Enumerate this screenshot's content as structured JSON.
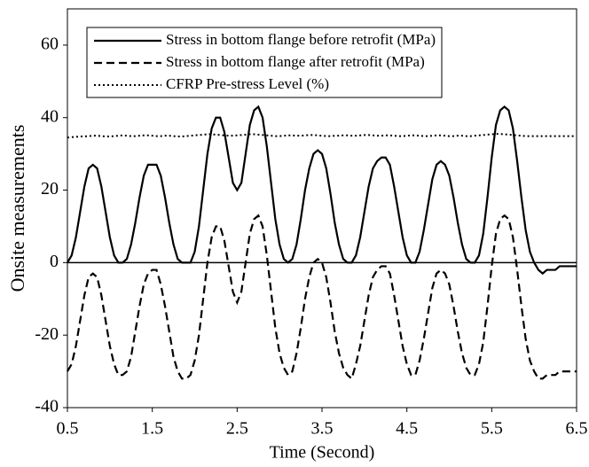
{
  "chart_data": {
    "type": "line",
    "xlabel": "Time (Second)",
    "ylabel": "Onsite measurements",
    "x": [
      0.5,
      0.55,
      0.6,
      0.65,
      0.7,
      0.75,
      0.8,
      0.85,
      0.9,
      0.95,
      1.0,
      1.05,
      1.1,
      1.15,
      1.2,
      1.25,
      1.3,
      1.35,
      1.4,
      1.45,
      1.5,
      1.55,
      1.6,
      1.65,
      1.7,
      1.75,
      1.8,
      1.85,
      1.9,
      1.95,
      2.0,
      2.05,
      2.1,
      2.15,
      2.2,
      2.25,
      2.3,
      2.35,
      2.4,
      2.45,
      2.5,
      2.55,
      2.6,
      2.65,
      2.7,
      2.75,
      2.8,
      2.85,
      2.9,
      2.95,
      3.0,
      3.05,
      3.1,
      3.15,
      3.2,
      3.25,
      3.3,
      3.35,
      3.4,
      3.45,
      3.5,
      3.55,
      3.6,
      3.65,
      3.7,
      3.75,
      3.8,
      3.85,
      3.9,
      3.95,
      4.0,
      4.05,
      4.1,
      4.15,
      4.2,
      4.25,
      4.3,
      4.35,
      4.4,
      4.45,
      4.5,
      4.55,
      4.6,
      4.65,
      4.7,
      4.75,
      4.8,
      4.85,
      4.9,
      4.95,
      5.0,
      5.05,
      5.1,
      5.15,
      5.2,
      5.25,
      5.3,
      5.35,
      5.4,
      5.45,
      5.5,
      5.55,
      5.6,
      5.65,
      5.7,
      5.75,
      5.8,
      5.85,
      5.9,
      5.95,
      6.0,
      6.05,
      6.1,
      6.15,
      6.2,
      6.25,
      6.3,
      6.35,
      6.4,
      6.45,
      6.5
    ],
    "series": [
      {
        "name": "Stress in bottom flange before retrofit (MPa)",
        "color": "#000000",
        "style": "solid",
        "values": [
          0,
          2,
          7,
          14,
          21,
          26,
          27,
          26,
          21,
          14,
          7,
          2,
          0,
          0,
          1,
          5,
          11,
          18,
          24,
          27,
          27,
          27,
          24,
          18,
          11,
          5,
          1,
          0,
          0,
          0,
          3,
          10,
          20,
          30,
          37,
          40,
          40,
          36,
          29,
          22,
          20,
          22,
          30,
          38,
          42,
          43,
          40,
          32,
          22,
          12,
          5,
          1,
          0,
          1,
          5,
          12,
          20,
          26,
          30,
          31,
          30,
          26,
          19,
          11,
          5,
          1,
          0,
          0,
          2,
          7,
          14,
          21,
          26,
          28,
          29,
          29,
          27,
          21,
          14,
          7,
          2,
          0,
          0,
          3,
          9,
          16,
          23,
          27,
          28,
          27,
          24,
          18,
          11,
          5,
          1,
          0,
          0,
          2,
          8,
          18,
          29,
          38,
          42,
          43,
          42,
          37,
          28,
          18,
          9,
          3,
          0,
          -2,
          -3,
          -2,
          -2,
          -2,
          -1,
          -1,
          -1,
          -1,
          -1
        ]
      },
      {
        "name": "Stress in bottom flange after retrofit (MPa)",
        "color": "#000000",
        "style": "dashed",
        "values": [
          -30,
          -28,
          -23,
          -16,
          -9,
          -4,
          -3,
          -4,
          -9,
          -16,
          -23,
          -28,
          -31,
          -31,
          -30,
          -26,
          -19,
          -12,
          -6,
          -3,
          -2,
          -2,
          -6,
          -12,
          -19,
          -26,
          -30,
          -32,
          -32,
          -31,
          -27,
          -20,
          -10,
          0,
          7,
          10,
          10,
          6,
          -1,
          -8,
          -11,
          -8,
          0,
          8,
          12,
          13,
          10,
          2,
          -8,
          -18,
          -25,
          -29,
          -31,
          -30,
          -25,
          -18,
          -10,
          -4,
          0,
          1,
          0,
          -4,
          -11,
          -19,
          -25,
          -29,
          -31,
          -32,
          -28,
          -23,
          -16,
          -9,
          -4,
          -2,
          -1,
          -1,
          -3,
          -9,
          -16,
          -23,
          -28,
          -31,
          -31,
          -27,
          -21,
          -14,
          -7,
          -3,
          -2,
          -3,
          -6,
          -12,
          -19,
          -25,
          -29,
          -31,
          -31,
          -28,
          -22,
          -12,
          -1,
          8,
          12,
          13,
          12,
          7,
          -2,
          -12,
          -21,
          -27,
          -30,
          -32,
          -32,
          -31,
          -31,
          -31,
          -30,
          -30,
          -30,
          -30,
          -30
        ]
      },
      {
        "name": "CFRP Pre-stress Level (%)",
        "color": "#000000",
        "style": "dotted",
        "values": [
          34.5,
          34.6,
          34.7,
          34.8,
          34.8,
          34.9,
          35,
          35,
          34.9,
          34.8,
          34.8,
          34.9,
          35,
          35.1,
          35,
          34.9,
          34.9,
          35,
          35.1,
          35.1,
          35,
          34.9,
          34.9,
          35,
          35,
          34.9,
          34.8,
          34.8,
          34.9,
          35,
          35.1,
          35.2,
          35.3,
          35.4,
          35.4,
          35.3,
          35.2,
          35.1,
          35,
          35,
          35.1,
          35.2,
          35.3,
          35.4,
          35.4,
          35.3,
          35.2,
          35.1,
          35,
          34.9,
          34.9,
          35,
          35.1,
          35.1,
          35,
          35,
          35.1,
          35.2,
          35.2,
          35.1,
          35,
          34.9,
          34.9,
          35,
          35,
          35.1,
          35.1,
          35,
          35,
          35.1,
          35.2,
          35.2,
          35.1,
          35,
          35,
          35.1,
          35.1,
          35,
          34.9,
          34.9,
          35,
          35.1,
          35.1,
          35,
          34.9,
          34.9,
          35,
          35.1,
          35.1,
          35,
          34.9,
          34.9,
          35,
          35,
          34.9,
          34.9,
          35,
          35.1,
          35.2,
          35.3,
          35.4,
          35.5,
          35.5,
          35.4,
          35.3,
          35.2,
          35.1,
          35,
          34.9,
          34.9,
          34.9,
          34.9,
          34.9,
          34.9,
          34.9,
          34.9,
          34.9,
          34.9,
          34.9,
          34.9,
          34.9
        ]
      }
    ],
    "xlim": [
      0.5,
      6.5
    ],
    "xticks": [
      0.5,
      1.5,
      2.5,
      3.5,
      4.5,
      5.5,
      6.5
    ],
    "ylim": [
      -40,
      70
    ],
    "yticks": [
      -40,
      -20,
      0,
      20,
      40,
      60
    ],
    "legend": "top-left"
  }
}
